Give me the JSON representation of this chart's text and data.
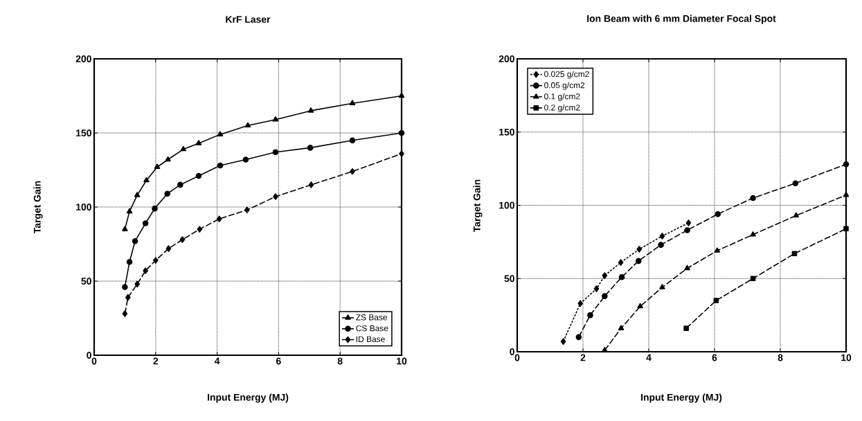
{
  "chart_data": [
    {
      "type": "line",
      "title": "KrF  Laser",
      "xlabel": "Input Energy  (MJ)",
      "ylabel": "Target  Gain",
      "xlim": [
        0,
        10
      ],
      "ylim": [
        0,
        200
      ],
      "xticks": [
        0,
        2,
        4,
        6,
        8,
        10
      ],
      "yticks": [
        0,
        50,
        100,
        150,
        200
      ],
      "grid": true,
      "legend": "bottom right",
      "series": [
        {
          "name": "ZS Base",
          "color": "#000000",
          "marker": "triangle",
          "line_style": "solid",
          "x": [
            1.0,
            1.15,
            1.4,
            1.7,
            2.05,
            2.4,
            2.9,
            3.4,
            4.1,
            5.0,
            5.9,
            7.05,
            8.4,
            10
          ],
          "values": [
            85,
            97,
            108,
            118,
            127,
            132,
            139,
            143,
            149,
            155,
            159,
            165,
            170,
            175
          ]
        },
        {
          "name": "CS Base",
          "color": "#000000",
          "marker": "circle",
          "line_style": "solid",
          "x": [
            1.0,
            1.15,
            1.33,
            1.67,
            1.97,
            2.38,
            2.8,
            3.4,
            4.1,
            4.93,
            5.9,
            7.03,
            8.4,
            10
          ],
          "values": [
            46,
            63,
            77,
            89,
            99,
            109,
            115,
            121,
            128,
            132,
            137,
            140,
            145,
            150
          ]
        },
        {
          "name": "ID Base",
          "color": "#000000",
          "marker": "diamond",
          "line_style": "dashed",
          "x": [
            1.0,
            1.1,
            1.4,
            1.67,
            2.0,
            2.42,
            2.87,
            3.43,
            4.07,
            4.97,
            5.9,
            7.06,
            8.4,
            10
          ],
          "values": [
            28,
            39,
            48,
            57,
            64,
            72,
            78,
            85,
            92,
            98,
            107,
            115,
            124,
            136
          ]
        }
      ]
    },
    {
      "type": "line",
      "title": "Ion Beam with 6 mm Diameter Focal Spot",
      "xlabel": "Input Energy  (MJ)",
      "ylabel": "Target  Gain",
      "xlim": [
        0,
        10
      ],
      "ylim": [
        0,
        200
      ],
      "xticks": [
        0,
        2,
        4,
        6,
        8,
        10
      ],
      "yticks": [
        0,
        50,
        100,
        150,
        200
      ],
      "grid": true,
      "legend": "top left",
      "series": [
        {
          "name": "0.025 g/cm2",
          "color": "#000000",
          "marker": "diamond",
          "line_style": "dotted",
          "x": [
            1.4,
            1.92,
            2.41,
            2.66,
            3.15,
            3.71,
            4.41,
            5.21
          ],
          "values": [
            7,
            33,
            43,
            52,
            61,
            70,
            79,
            88
          ]
        },
        {
          "name": "0.05 g/cm2",
          "color": "#000000",
          "marker": "circle",
          "line_style": "dashed",
          "x": [
            1.87,
            2.22,
            2.66,
            3.18,
            3.69,
            4.37,
            5.17,
            6.1,
            7.17,
            8.46,
            10
          ],
          "values": [
            10,
            25,
            38,
            51,
            62,
            73,
            83,
            94,
            105,
            115,
            128
          ]
        },
        {
          "name": "0.1 g/cm2",
          "color": "#000000",
          "marker": "triangle",
          "line_style": "dashed",
          "x": [
            2.66,
            3.16,
            3.74,
            4.41,
            5.17,
            6.08,
            7.17,
            8.48,
            10
          ],
          "values": [
            1,
            16,
            31,
            44,
            57,
            69,
            80,
            93,
            107
          ]
        },
        {
          "name": "0.2 g/cm2",
          "color": "#000000",
          "marker": "square",
          "line_style": "dashed",
          "x": [
            5.14,
            6.05,
            7.17,
            8.43,
            10
          ],
          "values": [
            16,
            35,
            50,
            67,
            84
          ]
        }
      ]
    }
  ]
}
